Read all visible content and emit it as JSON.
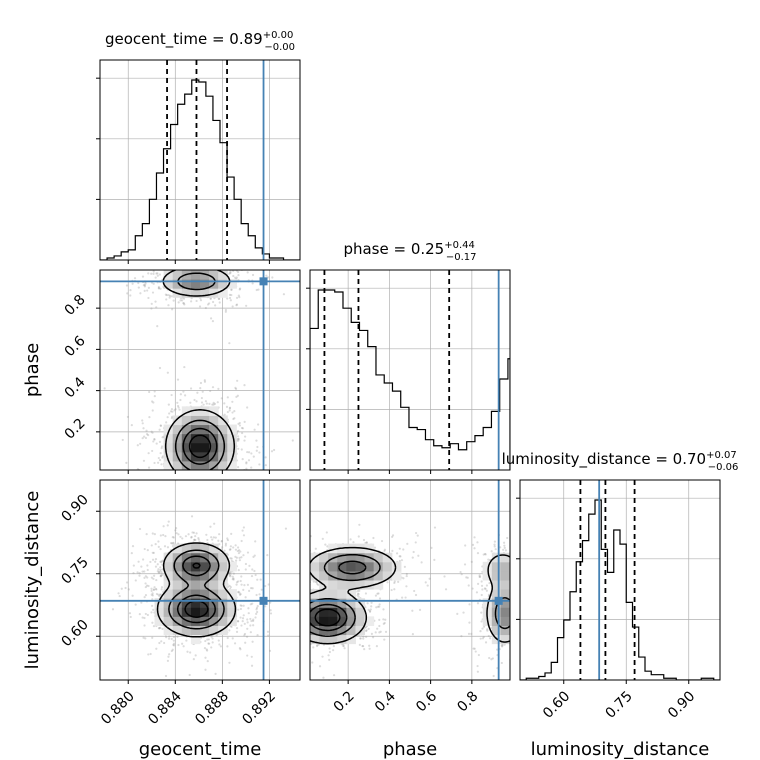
{
  "chart_data": {
    "type": "corner",
    "parameters": [
      "geocent_time",
      "phase",
      "luminosity_distance"
    ],
    "xlabels": [
      "geocent_time",
      "phase",
      "luminosity_distance"
    ],
    "ylabels": [
      "",
      "phase",
      "luminosity_distance"
    ],
    "ranges": {
      "geocent_time": [
        0.8776,
        0.8946
      ],
      "phase": [
        0.015,
        0.985
      ],
      "luminosity_distance": [
        0.495,
        0.975
      ]
    },
    "ticks": {
      "geocent_time": [
        "0.880",
        "0.884",
        "0.888",
        "0.892"
      ],
      "phase": [
        "0.2",
        "0.4",
        "0.6",
        "0.8"
      ],
      "luminosity_distance": [
        "0.60",
        "0.75",
        "0.90"
      ]
    },
    "titles": {
      "geocent_time": {
        "name": "geocent_time",
        "median": "0.89",
        "plus": "+0.00",
        "minus": "−0.00"
      },
      "phase": {
        "name": "phase",
        "median": "0.25",
        "plus": "+0.44",
        "minus": "−0.17"
      },
      "luminosity_distance": {
        "name": "luminosity_distance",
        "median": "0.70",
        "plus": "+0.07",
        "minus": "−0.06"
      }
    },
    "truths": {
      "geocent_time": 0.8915,
      "phase": 0.93,
      "luminosity_distance": 0.685
    },
    "quantiles": {
      "geocent_time": [
        0.8833,
        0.8858,
        0.8884
      ],
      "phase": [
        0.085,
        0.25,
        0.69
      ],
      "luminosity_distance": [
        0.64,
        0.7,
        0.77
      ]
    },
    "histograms": {
      "geocent_time": {
        "edges": [
          0.8776,
          0.8782,
          0.8788,
          0.8794,
          0.88,
          0.8806,
          0.8812,
          0.8818,
          0.8824,
          0.883,
          0.8836,
          0.8842,
          0.8848,
          0.8854,
          0.886,
          0.8866,
          0.8872,
          0.8878,
          0.8884,
          0.889,
          0.8896,
          0.8902,
          0.8908,
          0.8914,
          0.892,
          0.8926,
          0.8932,
          0.8938,
          0.8946
        ],
        "counts": [
          0,
          1,
          2,
          4,
          5,
          12,
          18,
          30,
          43,
          55,
          67,
          77,
          82,
          89,
          88,
          81,
          69,
          58,
          41,
          30,
          18,
          12,
          6,
          3,
          1,
          1,
          0,
          0
        ]
      },
      "phase": {
        "edges": [
          0.015,
          0.055,
          0.095,
          0.135,
          0.175,
          0.215,
          0.255,
          0.295,
          0.335,
          0.375,
          0.415,
          0.455,
          0.495,
          0.535,
          0.575,
          0.615,
          0.655,
          0.695,
          0.735,
          0.775,
          0.815,
          0.855,
          0.895,
          0.935,
          0.975,
          0.985
        ],
        "counts": [
          70,
          89,
          89,
          88,
          80,
          73,
          69,
          61,
          47,
          43,
          39,
          31,
          21,
          20,
          15,
          12,
          11,
          13,
          10,
          14,
          17,
          21,
          29,
          45,
          55
        ]
      },
      "luminosity_distance": {
        "edges": [
          0.495,
          0.51,
          0.525,
          0.54,
          0.555,
          0.57,
          0.585,
          0.6,
          0.615,
          0.63,
          0.645,
          0.66,
          0.675,
          0.69,
          0.705,
          0.72,
          0.735,
          0.75,
          0.765,
          0.78,
          0.795,
          0.81,
          0.825,
          0.84,
          0.855,
          0.87,
          0.885,
          0.9,
          0.915,
          0.93,
          0.945,
          0.96,
          0.975
        ],
        "counts": [
          0,
          1,
          1,
          2,
          4,
          10,
          24,
          34,
          50,
          67,
          79,
          94,
          102,
          74,
          61,
          85,
          77,
          44,
          30,
          13,
          5,
          3,
          3,
          1,
          1,
          0,
          0,
          0,
          0,
          1,
          1,
          0
        ]
      }
    },
    "densities_2d": [
      {
        "x": "geocent_time",
        "y": "phase",
        "blobs": [
          {
            "cx": 0.8861,
            "cy": 0.13,
            "sx": 0.0014,
            "sy": 0.085,
            "w": 1.0
          },
          {
            "cx": 0.8858,
            "cy": 0.93,
            "sx": 0.0016,
            "sy": 0.04,
            "w": 0.55
          }
        ]
      },
      {
        "x": "geocent_time",
        "y": "luminosity_distance",
        "blobs": [
          {
            "cx": 0.8858,
            "cy": 0.665,
            "sx": 0.0016,
            "sy": 0.032,
            "w": 1.0
          },
          {
            "cx": 0.8858,
            "cy": 0.77,
            "sx": 0.0014,
            "sy": 0.027,
            "w": 0.85
          }
        ]
      },
      {
        "x": "phase",
        "y": "luminosity_distance",
        "blobs": [
          {
            "cx": 0.1,
            "cy": 0.645,
            "sx": 0.09,
            "sy": 0.03,
            "w": 1.0
          },
          {
            "cx": 0.22,
            "cy": 0.765,
            "sx": 0.11,
            "sy": 0.025,
            "w": 0.7
          },
          {
            "cx": 0.96,
            "cy": 0.655,
            "sx": 0.05,
            "sy": 0.04,
            "w": 0.5
          },
          {
            "cx": 0.95,
            "cy": 0.76,
            "sx": 0.05,
            "sy": 0.025,
            "w": 0.3
          }
        ]
      }
    ],
    "colors": {
      "truth": "#4682b4",
      "hist": "#000000",
      "grid": "#b0b0b0",
      "density": "#000000"
    },
    "grid": true
  }
}
